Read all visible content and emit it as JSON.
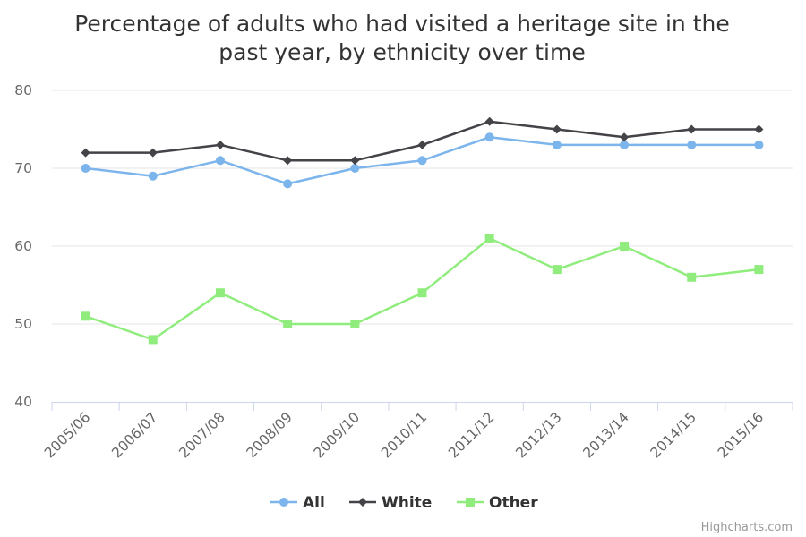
{
  "chart_data": {
    "type": "line",
    "title_lines": [
      "Percentage of adults who had visited a heritage site in the",
      "past year, by ethnicity over time"
    ],
    "xlabel": "",
    "ylabel": "",
    "categories": [
      "2005/06",
      "2006/07",
      "2007/08",
      "2008/09",
      "2009/10",
      "2010/11",
      "2011/12",
      "2012/13",
      "2013/14",
      "2014/15",
      "2015/16"
    ],
    "y_ticks": [
      "40",
      "50",
      "60",
      "70",
      "80"
    ],
    "ylim": [
      40,
      80
    ],
    "grid": true,
    "legend_position": "bottom-center",
    "series": [
      {
        "name": "All",
        "color": "#7cb5ec",
        "marker": "circle",
        "values": [
          70,
          69,
          71,
          68,
          70,
          71,
          74,
          73,
          73,
          73,
          73
        ]
      },
      {
        "name": "White",
        "color": "#434348",
        "marker": "diamond",
        "values": [
          72,
          72,
          73,
          71,
          71,
          73,
          76,
          75,
          74,
          75,
          75
        ]
      },
      {
        "name": "Other",
        "color": "#90ed7d",
        "marker": "square",
        "values": [
          51,
          48,
          54,
          50,
          50,
          54,
          61,
          57,
          60,
          56,
          57
        ]
      }
    ]
  },
  "credits": "Highcharts.com"
}
